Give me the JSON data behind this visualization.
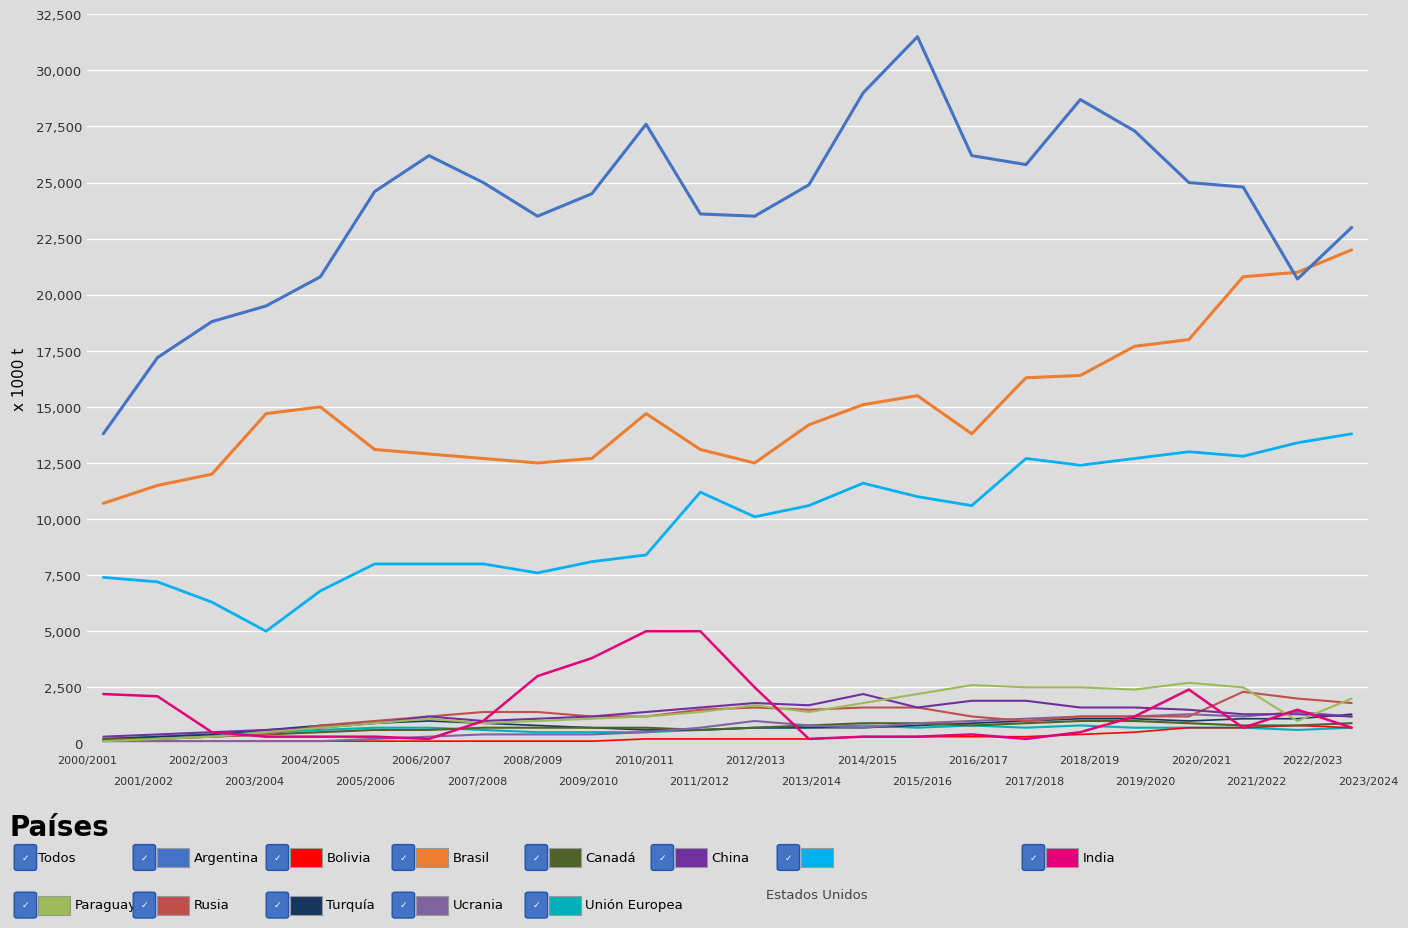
{
  "campaigns": [
    "2000/2001",
    "2001/2002",
    "2002/2003",
    "2003/2004",
    "2004/2005",
    "2005/2006",
    "2006/2007",
    "2007/2008",
    "2008/2009",
    "2009/2010",
    "2010/2011",
    "2011/2012",
    "2012/2013",
    "2013/2014",
    "2014/2015",
    "2015/2016",
    "2016/2017",
    "2017/2018",
    "2018/2019",
    "2019/2020",
    "2020/2021",
    "2021/2022",
    "2022/2023",
    "2023/2024"
  ],
  "Argentina": [
    13800,
    17200,
    18800,
    19500,
    20800,
    24600,
    26200,
    25000,
    23500,
    24500,
    27600,
    23600,
    23500,
    24900,
    29000,
    31500,
    26200,
    25800,
    28700,
    27300,
    25000,
    24800,
    20700,
    23000
  ],
  "Brasil": [
    10700,
    11500,
    12000,
    14700,
    15000,
    13100,
    12900,
    12700,
    12500,
    12700,
    14700,
    13100,
    12500,
    14200,
    15100,
    15500,
    13800,
    16300,
    16400,
    17700,
    18000,
    20800,
    21000,
    22000
  ],
  "Estados_Unidos": [
    7400,
    7200,
    6300,
    5000,
    6800,
    8000,
    8000,
    8000,
    7600,
    8100,
    8400,
    11200,
    10100,
    10600,
    11600,
    11000,
    10600,
    12700,
    12400,
    12700,
    13000,
    12800,
    13400,
    13800
  ],
  "India": [
    2200,
    2100,
    500,
    300,
    300,
    300,
    200,
    1000,
    3000,
    3800,
    5000,
    5000,
    2500,
    200,
    300,
    300,
    400,
    200,
    500,
    1200,
    2400,
    700,
    1500,
    700
  ],
  "China": [
    300,
    400,
    500,
    600,
    700,
    900,
    1200,
    1000,
    1100,
    1200,
    1400,
    1600,
    1800,
    1700,
    2200,
    1600,
    1900,
    1900,
    1600,
    1600,
    1500,
    1300,
    1300,
    1200
  ],
  "Rusia": [
    100,
    200,
    300,
    400,
    800,
    1000,
    1200,
    1400,
    1400,
    1200,
    1200,
    1500,
    1600,
    1500,
    1600,
    1600,
    1200,
    1000,
    1200,
    1200,
    1200,
    2300,
    2000,
    1800
  ],
  "Paraguay": [
    100,
    200,
    300,
    500,
    700,
    900,
    1100,
    900,
    1000,
    1100,
    1200,
    1400,
    1700,
    1400,
    1800,
    2200,
    2600,
    2500,
    2500,
    2400,
    2700,
    2500,
    1000,
    2000
  ],
  "Bolivia": [
    100,
    100,
    100,
    100,
    100,
    100,
    100,
    100,
    100,
    100,
    200,
    200,
    200,
    200,
    300,
    300,
    300,
    300,
    400,
    500,
    700,
    700,
    800,
    700
  ],
  "Turquia": [
    200,
    300,
    400,
    600,
    800,
    900,
    1000,
    900,
    800,
    700,
    600,
    600,
    700,
    700,
    700,
    800,
    900,
    1000,
    1100,
    1100,
    1000,
    1100,
    1100,
    1300
  ],
  "Ucrania": [
    100,
    100,
    100,
    100,
    100,
    200,
    300,
    400,
    400,
    400,
    500,
    700,
    1000,
    800,
    700,
    900,
    1000,
    1100,
    1200,
    1200,
    1300,
    1200,
    1400,
    1200
  ],
  "Canada": [
    200,
    200,
    300,
    400,
    500,
    600,
    600,
    700,
    700,
    700,
    700,
    600,
    700,
    800,
    900,
    900,
    800,
    900,
    1000,
    1000,
    900,
    800,
    800,
    900
  ],
  "Union_Europea": [
    200,
    300,
    400,
    500,
    600,
    700,
    700,
    600,
    500,
    500,
    500,
    600,
    700,
    700,
    800,
    700,
    800,
    700,
    800,
    700,
    700,
    700,
    600,
    700
  ],
  "colors": {
    "Argentina": "#4472C4",
    "Brasil": "#ED7D31",
    "Estados_Unidos": "#00B0F0",
    "India": "#E2007A",
    "China": "#7030A0",
    "Rusia": "#C0504D",
    "Paraguay": "#9BBB59",
    "Bolivia": "#FF0000",
    "Turquia": "#17375E",
    "Ucrania": "#8064A2",
    "Canada": "#4F6228",
    "Union_Europea": "#00B0B8"
  },
  "ylim": [
    0,
    32500
  ],
  "yticks": [
    0,
    2500,
    5000,
    7500,
    10000,
    12500,
    15000,
    17500,
    20000,
    22500,
    25000,
    27500,
    30000,
    32500
  ],
  "ylabel": "x 1000 t",
  "plot_bg": "#DCDCDC",
  "fig_bg": "#DCDCDC",
  "legend_title": "Países",
  "legend_row1": [
    {
      "label": "Todos",
      "color": null
    },
    {
      "label": "Argentina",
      "color": "#4472C4"
    },
    {
      "label": "Bolivia",
      "color": "#FF0000"
    },
    {
      "label": "Brasil",
      "color": "#ED7D31"
    },
    {
      "label": "Canadá",
      "color": "#4F6228"
    },
    {
      "label": "China",
      "color": "#7030A0"
    },
    {
      "label": "Estados Unidos",
      "color": "#00B0F0",
      "label_below": true
    },
    {
      "label": "India",
      "color": "#E2007A"
    }
  ],
  "legend_row2": [
    {
      "label": "Paraguay",
      "color": "#9BBB59"
    },
    {
      "label": "Rusia",
      "color": "#C0504D"
    },
    {
      "label": "Turquía",
      "color": "#17375E"
    },
    {
      "label": "Ucrania",
      "color": "#8064A2"
    },
    {
      "label": "Unión Europea",
      "color": "#00B0B8"
    }
  ]
}
